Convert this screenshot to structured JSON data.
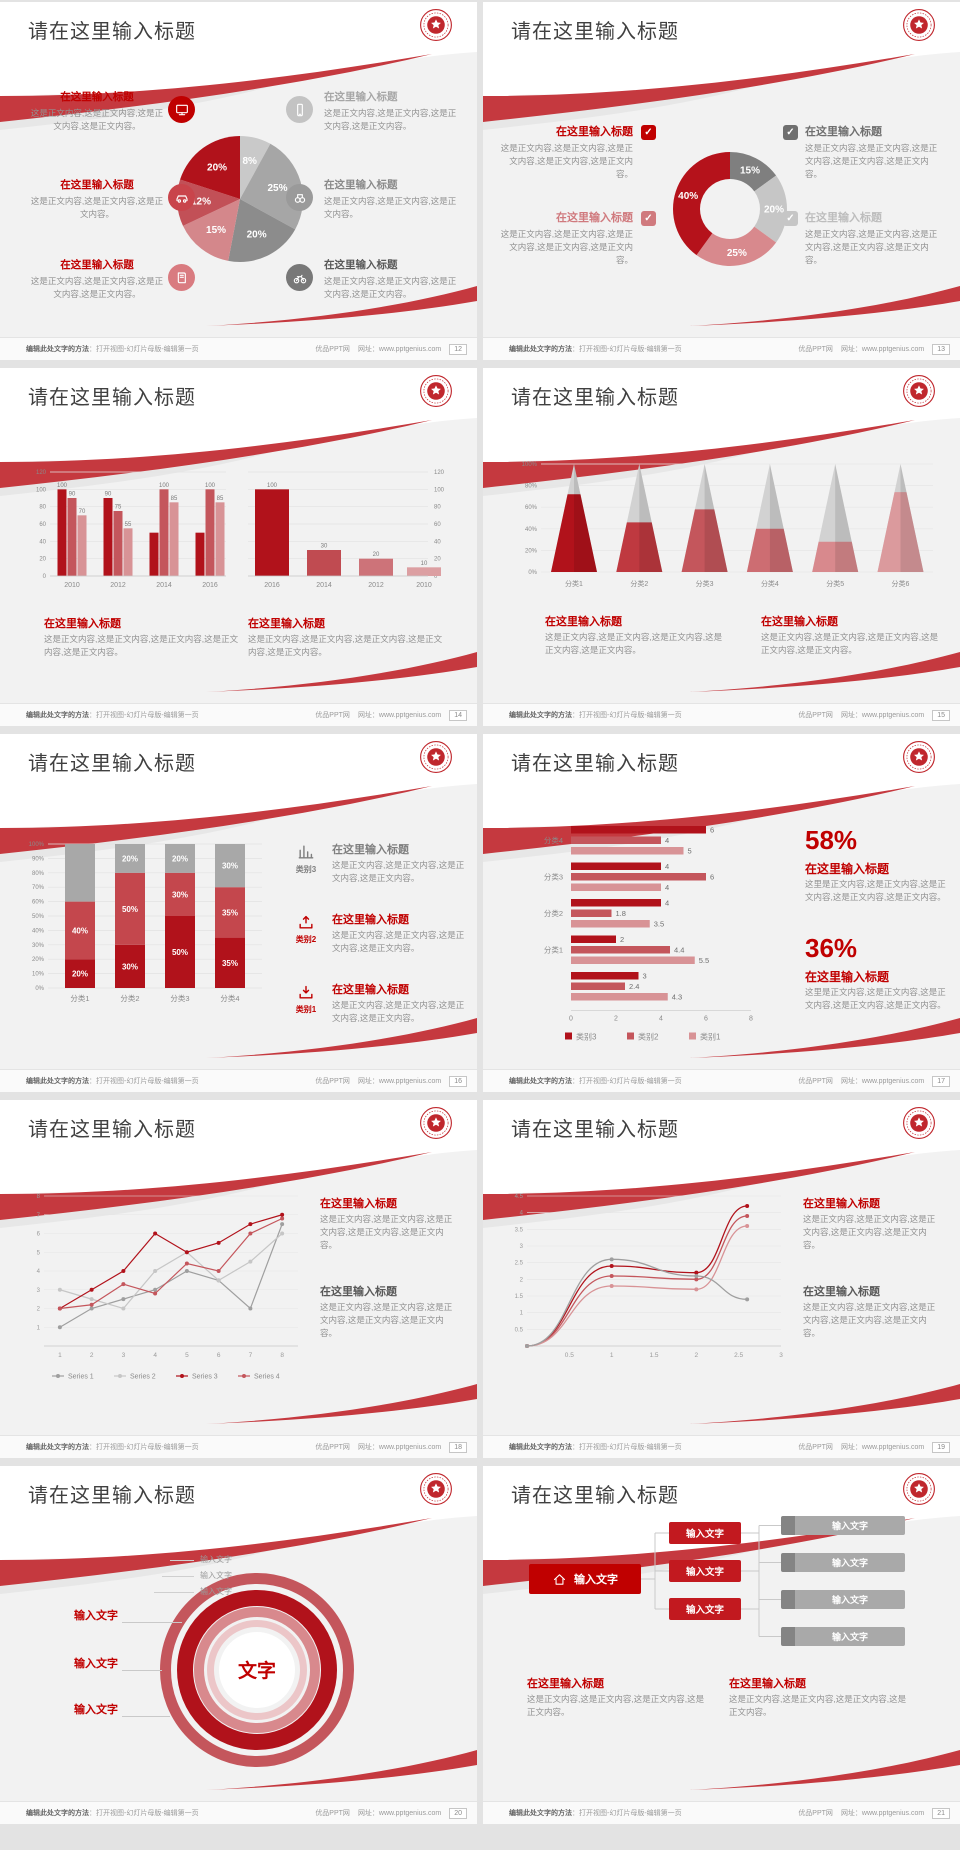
{
  "page_bg": "#e3e3e3",
  "common": {
    "slide_title": "请在这里输入标题",
    "section_title": "在这里输入标题",
    "input_text": "输入文字",
    "center_text": "文字",
    "body_short": "这是正文内容,这是正文内容,这是正文内容。",
    "body_med": "这是正文内容,这是正文内容,这是正文内容,这是正文内容。",
    "body_long": "这是正文内容,这是正文内容,这是正文内容,这是正文内容,这是正文内容。",
    "body_alt": "这里是正文内容,这是正文内容,这是正文内容,这是正文内容,这是正文内容。"
  },
  "footer": {
    "hint_bold": "编辑此处文字的方法",
    "hint_rest": "：打开视图-幻灯片母版-编辑第一页",
    "site": "优品PPT网",
    "url_label": "网址：www.pptgenius.com"
  },
  "colors": {
    "title_red": "#c00000",
    "ribbon_red": "#c5393f",
    "dark_red": "#b1121b",
    "mid_red": "#c4565c",
    "light_red": "#d8939 6",
    "gray_text": "#8a8a8a"
  },
  "slides": [
    {
      "page": "12",
      "type": "pie",
      "chart_data": {
        "type": "pie",
        "slices": [
          {
            "label": "8%",
            "value": 8,
            "color": "#c9c9c9"
          },
          {
            "label": "25%",
            "value": 25,
            "color": "#a6a6a6"
          },
          {
            "label": "20%",
            "value": 20,
            "color": "#8c8c8c"
          },
          {
            "label": "15%",
            "value": 15,
            "color": "#d4878b"
          },
          {
            "label": "12%",
            "value": 12,
            "color": "#c25057"
          },
          {
            "label": "20%",
            "value": 20,
            "color": "#b1121b"
          }
        ]
      },
      "callouts": {
        "left": [
          {
            "icon": "monitor-icon",
            "icon_bg": "#c00000",
            "title": "在这里输入标题",
            "title_color": "#c00000",
            "body": "这是正文内容,这是正文内容,这是正文内容,这是正文内容。"
          },
          {
            "icon": "car-icon",
            "icon_bg": "#c9444b",
            "title": "在这里输入标题",
            "title_color": "#c00000",
            "body": "这是正文内容,这是正文内容,这是正文内容。"
          },
          {
            "icon": "book-icon",
            "icon_bg": "#d97b80",
            "title": "在这里输入标题",
            "title_color": "#c00000",
            "body": "这是正文内容,这是正文内容,这是正文内容,这是正文内容。"
          }
        ],
        "right": [
          {
            "icon": "phone-icon",
            "icon_bg": "#c3c3c3",
            "title": "在这里输入标题",
            "title_color": "#a6a6a6",
            "body": "这是正文内容,这是正文内容,这是正文内容,这是正文内容。"
          },
          {
            "icon": "binoculars-icon",
            "icon_bg": "#9a9a9a",
            "title": "在这里输入标题",
            "title_color": "#8a8a8a",
            "body": "这是正文内容,这是正文内容,这是正文内容。"
          },
          {
            "icon": "bicycle-icon",
            "icon_bg": "#787878",
            "title": "在这里输入标题",
            "title_color": "#595959",
            "body": "这是正文内容,这是正文内容,这是正文内容,这是正文内容。"
          }
        ]
      }
    },
    {
      "page": "13",
      "type": "donut",
      "chart_data": {
        "type": "pie",
        "donut": true,
        "slices": [
          {
            "label": "15%",
            "value": 15,
            "color": "#7f7f7f"
          },
          {
            "label": "20%",
            "value": 20,
            "color": "#c6c6c6"
          },
          {
            "label": "25%",
            "value": 25,
            "color": "#d8898d"
          },
          {
            "label": "40%",
            "value": 40,
            "color": "#b5121b"
          }
        ]
      },
      "callouts": [
        {
          "title": "在这里输入标题",
          "title_color": "#c00000",
          "cb_color": "#c00000",
          "body": "这是正文内容,这是正文内容,这是正文内容,这是正文内容,这是正文内容。"
        },
        {
          "title": "在这里输入标题",
          "title_color": "#d07a7e",
          "cb_color": "#d07a7e",
          "body": "这是正文内容,这是正文内容,这是正文内容,这是正文内容,这是正文内容。"
        },
        {
          "title": "在这里输入标题",
          "title_color": "#6f6f6f",
          "cb_color": "#6f6f6f",
          "body": "这是正文内容,这是正文内容,这是正文内容,这是正文内容,这是正文内容。"
        },
        {
          "title": "在这里输入标题",
          "title_color": "#bdbdbd",
          "cb_color": "#c6c6c6",
          "body": "这是正文内容,这是正文内容,这是正文内容,这是正文内容,这是正文内容。"
        }
      ]
    },
    {
      "page": "14",
      "type": "bars2",
      "chart_data": [
        {
          "type": "bar",
          "title": "",
          "categories": [
            "2010",
            "2012",
            "2014",
            "2016"
          ],
          "series": [
            {
              "name": "series-dark",
              "color": "#b1121b",
              "values": [
                100,
                90,
                50,
                50
              ],
              "labels": [
                "100",
                "90",
                "",
                ""
              ]
            },
            {
              "name": "series-mid",
              "color": "#c4565c",
              "values": [
                90,
                75,
                100,
                100
              ],
              "labels": [
                "90",
                "75",
                "100",
                "100"
              ]
            },
            {
              "name": "series-light",
              "color": "#d89396",
              "values": [
                70,
                55,
                85,
                85
              ],
              "labels": [
                "70",
                "55",
                "85",
                "85"
              ]
            }
          ],
          "yticks": [
            0,
            20,
            40,
            60,
            80,
            100,
            120
          ],
          "ylim": [
            0,
            120
          ]
        },
        {
          "type": "bar",
          "title": "",
          "categories": [
            "2016",
            "2014",
            "2012",
            "2010"
          ],
          "values": [
            100,
            30,
            20,
            10
          ],
          "labels": [
            "100",
            "30",
            "20",
            "10"
          ],
          "colors": [
            "#b1121b",
            "#c04b51",
            "#cd7379",
            "#dc9fa2"
          ],
          "yticks": [
            0,
            20,
            40,
            60,
            80,
            100,
            120
          ],
          "ylim": [
            0,
            120
          ],
          "yaxis": "right"
        }
      ],
      "callouts": [
        {
          "title": "在这里输入标题",
          "body": "这是正文内容,这是正文内容,这是正文内容,这是正文内容,这是正文内容。"
        },
        {
          "title": "在这里输入标题",
          "body": "这是正文内容,这是正文内容,这是正文内容,这是正文内容,这是正文内容。"
        }
      ]
    },
    {
      "page": "15",
      "type": "pyramid",
      "chart_data": {
        "type": "bar",
        "style": "pyramid",
        "categories": [
          "分类1",
          "分类2",
          "分类3",
          "分类4",
          "分类5",
          "分类6"
        ],
        "values": [
          72,
          46,
          58,
          40,
          28,
          74
        ],
        "colors": [
          "#b1121b",
          "#bf3940",
          "#c4565c",
          "#cd6d72",
          "#d8898d",
          "#db9a9d"
        ],
        "top_color": "#d2d2d2",
        "yticks": [
          "0%",
          "20%",
          "40%",
          "60%",
          "80%",
          "100%"
        ],
        "ylim": [
          0,
          100
        ]
      },
      "callouts": [
        {
          "title": "在这里输入标题",
          "body": "这是正文内容,这是正文内容,这是正文内容,这是正文内容,这是正文内容。"
        },
        {
          "title": "在这里输入标题",
          "body": "这是正文内容,这是正文内容,这是正文内容,这是正文内容,这是正文内容。"
        }
      ]
    },
    {
      "page": "16",
      "type": "stacked",
      "chart_data": {
        "type": "bar",
        "style": "stacked-100",
        "categories": [
          "分类1",
          "分类2",
          "分类3",
          "分类4"
        ],
        "series": [
          {
            "name": "bottom",
            "color": "#b1121b",
            "values": [
              20,
              30,
              50,
              35
            ],
            "labels": [
              "20%",
              "30%",
              "50%",
              "35%"
            ]
          },
          {
            "name": "middle",
            "color": "#c4474d",
            "values": [
              40,
              50,
              30,
              35
            ],
            "labels": [
              "40%",
              "50%",
              "30%",
              "35%"
            ]
          },
          {
            "name": "top",
            "color": "#a8a8a8",
            "values": [
              40,
              20,
              20,
              30
            ],
            "labels": [
              "",
              "20%",
              "20%",
              "30%"
            ]
          }
        ],
        "yticks": [
          "0%",
          "10%",
          "20%",
          "30%",
          "40%",
          "50%",
          "60%",
          "70%",
          "80%",
          "90%",
          "100%"
        ],
        "ylim": [
          0,
          100
        ]
      },
      "callouts": [
        {
          "icon": "bar-chart-icon",
          "color": "#7f7f7f",
          "tag": "类别3",
          "title": "在这里输入标题",
          "title_color": "#7f7f7f",
          "body": "这是正文内容,这是正文内容,这是正文内容,这是正文内容。"
        },
        {
          "icon": "upload-icon",
          "color": "#c00000",
          "tag": "类别2",
          "title": "在这里输入标题",
          "title_color": "#c00000",
          "body": "这是正文内容,这是正文内容,这是正文内容,这是正文内容。"
        },
        {
          "icon": "download-icon",
          "color": "#c00000",
          "tag": "类别1",
          "title": "在这里输入标题",
          "title_color": "#c00000",
          "body": "这是正文内容,这是正文内容,这是正文内容,这是正文内容。"
        }
      ]
    },
    {
      "page": "17",
      "type": "hbars",
      "chart_data": {
        "type": "bar",
        "orientation": "horizontal",
        "groups": [
          {
            "label": "分类4",
            "values": [
              6,
              4,
              5
            ]
          },
          {
            "label": "分类3",
            "values": [
              4,
              6,
              4
            ]
          },
          {
            "label": "分类2",
            "values": [
              4,
              1.8,
              3.5
            ]
          },
          {
            "label": "分类1",
            "values": [
              2,
              4.4,
              5.5
            ]
          },
          {
            "label": "",
            "values": [
              3,
              2.4,
              4.3
            ]
          }
        ],
        "colors": [
          "#b1121b",
          "#c4565c",
          "#d89396"
        ],
        "xticks": [
          0,
          2,
          4,
          6,
          8
        ],
        "xlim": [
          0,
          8
        ],
        "legend": [
          "类别3",
          "类别2",
          "类别1"
        ]
      },
      "stats": [
        {
          "pct": "58%",
          "title": "在这里输入标题",
          "body": "这里是正文内容,这是正文内容,这是正文内容,这是正文内容,这是正文内容。"
        },
        {
          "pct": "36%",
          "title": "在这里输入标题",
          "body": "这里是正文内容,这是正文内容,这是正文内容,这是正文内容,这是正文内容。"
        }
      ]
    },
    {
      "page": "18",
      "type": "lines",
      "chart_data": {
        "type": "line",
        "x": [
          1,
          2,
          3,
          4,
          5,
          6,
          7,
          8
        ],
        "series": [
          {
            "name": "Series 1",
            "color": "#9f9f9f",
            "values": [
              1,
              2,
              2.5,
              3,
              4,
              3.5,
              2,
              6.5
            ]
          },
          {
            "name": "Series 2",
            "color": "#c6c6c6",
            "values": [
              3,
              2.5,
              2,
              4,
              5,
              3.5,
              4.5,
              6
            ]
          },
          {
            "name": "Series 3",
            "color": "#b1121b",
            "values": [
              2,
              3,
              4,
              6,
              5,
              5.5,
              6.5,
              7
            ]
          },
          {
            "name": "Series 4",
            "color": "#c4565c",
            "values": [
              2,
              2.2,
              3.3,
              2.8,
              4.4,
              4,
              6,
              6.8
            ]
          }
        ],
        "yticks": [
          1,
          2,
          3,
          4,
          5,
          6,
          7,
          8
        ],
        "ylim": [
          0,
          8
        ],
        "legend_position": "bottom"
      },
      "callouts": [
        {
          "title": "在这里输入标题",
          "title_color": "#c00000",
          "body": "这是正文内容,这是正文内容,这是正文内容,这是正文内容,这是正文内容。"
        },
        {
          "title": "在这里输入标题",
          "title_color": "#595959",
          "body": "这是正文内容,这是正文内容,这是正文内容,这是正文内容,这是正文内容。"
        }
      ]
    },
    {
      "page": "19",
      "type": "curves",
      "chart_data": {
        "type": "line",
        "smooth": true,
        "x": [
          0,
          1,
          2,
          2.6
        ],
        "series": [
          {
            "name": "curve-dark-red",
            "color": "#b1121b",
            "values": [
              0,
              2.4,
              2.2,
              4.2
            ]
          },
          {
            "name": "curve-red",
            "color": "#c4565c",
            "values": [
              0,
              2.1,
              2.0,
              3.9
            ]
          },
          {
            "name": "curve-light-red",
            "color": "#d89396",
            "values": [
              0,
              1.8,
              1.7,
              3.6
            ]
          },
          {
            "name": "curve-gray",
            "color": "#9f9f9f",
            "values": [
              0,
              2.6,
              2.1,
              1.4
            ]
          }
        ],
        "xticks": [
          0.5,
          1,
          1.5,
          2,
          2.5,
          3
        ],
        "xlim": [
          0,
          3
        ],
        "yticks": [
          0.5,
          1,
          1.5,
          2,
          2.5,
          3,
          3.5,
          4,
          4.5
        ],
        "ylim": [
          0,
          4.5
        ]
      },
      "callouts": [
        {
          "title": "在这里输入标题",
          "title_color": "#c00000",
          "body": "这是正文内容,这是正文内容,这是正文内容,这是正文内容,这是正文内容。"
        },
        {
          "title": "在这里输入标题",
          "title_color": "#595959",
          "body": "这是正文内容,这是正文内容,这是正文内容,这是正文内容,这是正文内容。"
        }
      ]
    },
    {
      "page": "20",
      "type": "rings",
      "diagram": {
        "center_text": "文字",
        "ring_colors": [
          "#c4565c",
          "#b1121b",
          "#d8898d",
          "#ecc6c8"
        ],
        "left_labels": [
          "输入文字",
          "输入文字",
          "输入文字"
        ],
        "top_labels": [
          "输入文字",
          "输入文字",
          "输入文字"
        ]
      }
    },
    {
      "page": "21",
      "type": "flow",
      "diagram": {
        "main_box": {
          "icon": "home-icon",
          "label": "输入文字",
          "color": "#c00000"
        },
        "mid_boxes": [
          "输入文字",
          "输入文字",
          "输入文字"
        ],
        "right_boxes": [
          "输入文字",
          "输入文字",
          "输入文字",
          "输入文字"
        ]
      },
      "callouts": [
        {
          "title": "在这里输入标题",
          "body": "这是正文内容,这是正文内容,这是正文内容,这是正文内容。"
        },
        {
          "title": "在这里输入标题",
          "body": "这是正文内容,这是正文内容,这是正文内容,这是正文内容。"
        }
      ]
    }
  ]
}
